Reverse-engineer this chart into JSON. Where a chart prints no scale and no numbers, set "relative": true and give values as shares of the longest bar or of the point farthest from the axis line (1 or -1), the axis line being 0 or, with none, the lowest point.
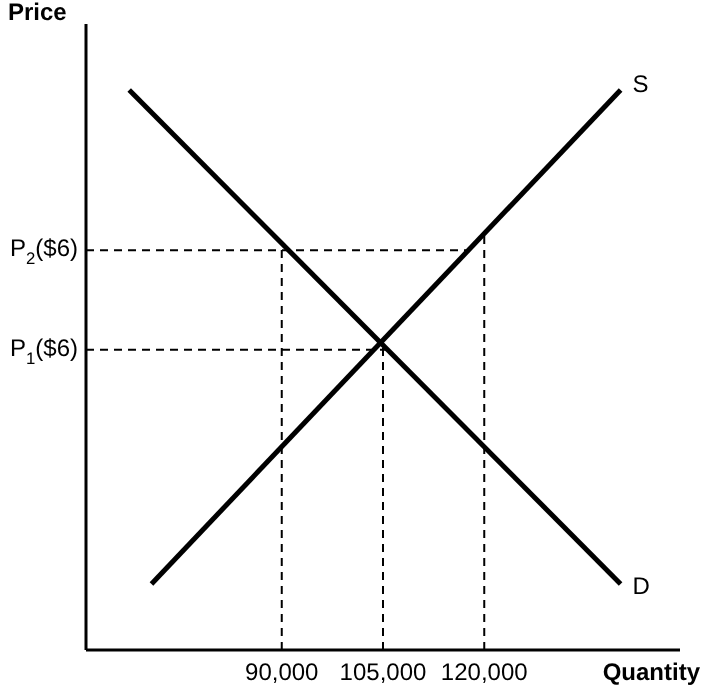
{
  "chart_data": {
    "type": "line",
    "relative": true,
    "xlabel": "Quantity",
    "ylabel": "Price",
    "xlim": [
      61000,
      149000
    ],
    "xticks": [
      {
        "value": 90000,
        "label": "90,000"
      },
      {
        "value": 105000,
        "label": "105,000"
      },
      {
        "value": 120000,
        "label": "120,000"
      }
    ],
    "series": [
      {
        "name": "D",
        "color": "#000000",
        "x": [
          67400,
          140200
        ],
        "values": [
          1,
          0.118
        ]
      },
      {
        "name": "S",
        "color": "#000000",
        "x": [
          70700,
          140200
        ],
        "values": [
          0.118,
          1
        ]
      }
    ],
    "ref_lines": [
      {
        "axis": "y",
        "value": 0.714,
        "label": "P$_{2}$($6)",
        "line_style": "dashed",
        "color": "#000000"
      },
      {
        "axis": "y",
        "value": 0.536,
        "label": "P$_{1}$($6)",
        "line_style": "dashed",
        "color": "#000000"
      },
      {
        "axis": "x",
        "value": 90000,
        "line_style": "dashed",
        "color": "#000000"
      },
      {
        "axis": "x",
        "value": 105000,
        "line_style": "dashed",
        "color": "#000000"
      },
      {
        "axis": "x",
        "value": 120000,
        "line_style": "dashed",
        "color": "#000000"
      }
    ],
    "grid": false,
    "legend": false,
    "marker": "none",
    "line_style": "solid"
  }
}
